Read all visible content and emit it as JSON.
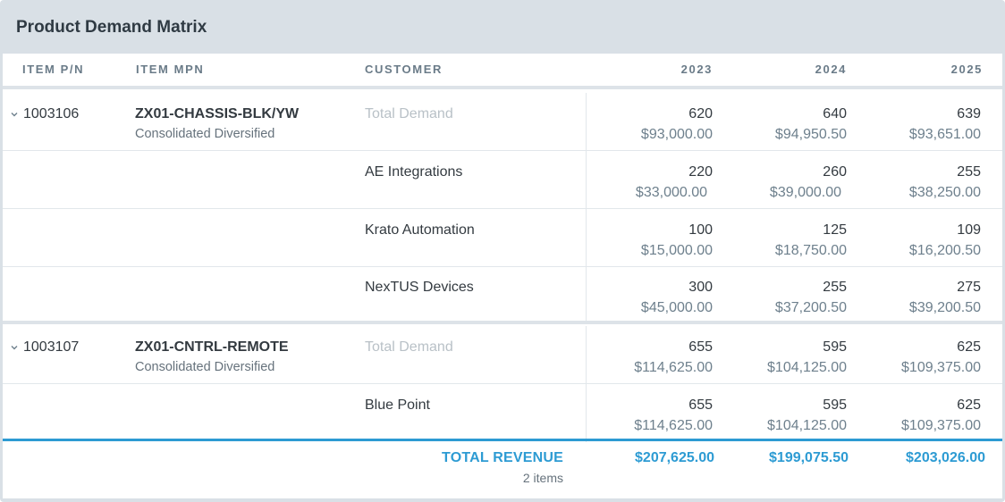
{
  "title": "Product Demand Matrix",
  "columns": {
    "item_pn": "ITEM P/N",
    "item_mpn": "ITEM MPN",
    "customer": "CUSTOMER",
    "y2023": "2023",
    "y2024": "2024",
    "y2025": "2025"
  },
  "items": [
    {
      "pn": "1003106",
      "mpn": "ZX01-CHASSIS-BLK/YW",
      "owner": "Consolidated Diversified",
      "rows": [
        {
          "customer": "Total Demand",
          "q2023": "620",
          "a2023": "$93,000.00",
          "q2024": "640",
          "a2024": "$94,950.50",
          "q2025": "639",
          "a2025": "$93,651.00"
        },
        {
          "customer": "AE Integrations",
          "q2023": "220",
          "a2023": "$33,000.00",
          "q2024": "260",
          "a2024": "$39,000.00",
          "q2025": "255",
          "a2025": "$38,250.00"
        },
        {
          "customer": "Krato Automation",
          "q2023": "100",
          "a2023": "$15,000.00",
          "q2024": "125",
          "a2024": "$18,750.00",
          "q2025": "109",
          "a2025": "$16,200.50"
        },
        {
          "customer": "NexTUS Devices",
          "q2023": "300",
          "a2023": "$45,000.00",
          "q2024": "255",
          "a2024": "$37,200.50",
          "q2025": "275",
          "a2025": "$39,200.50"
        }
      ]
    },
    {
      "pn": "1003107",
      "mpn": "ZX01-CNTRL-REMOTE",
      "owner": "Consolidated Diversified",
      "rows": [
        {
          "customer": "Total Demand",
          "q2023": "655",
          "a2023": "$114,625.00",
          "q2024": "595",
          "a2024": "$104,125.00",
          "q2025": "625",
          "a2025": "$109,375.00"
        },
        {
          "customer": "Blue Point",
          "q2023": "655",
          "a2023": "$114,625.00",
          "q2024": "595",
          "a2024": "$104,125.00",
          "q2025": "625",
          "a2025": "$109,375.00"
        }
      ]
    }
  ],
  "footer": {
    "label": "TOTAL REVENUE",
    "count": "2 items",
    "t2023": "$207,625.00",
    "t2024": "$199,075.50",
    "t2025": "$203,026.00"
  },
  "colors": {
    "accent": "#2d9bd3",
    "panel": "#d9e0e6"
  },
  "icons": {
    "expand": "chevron-down-icon"
  }
}
